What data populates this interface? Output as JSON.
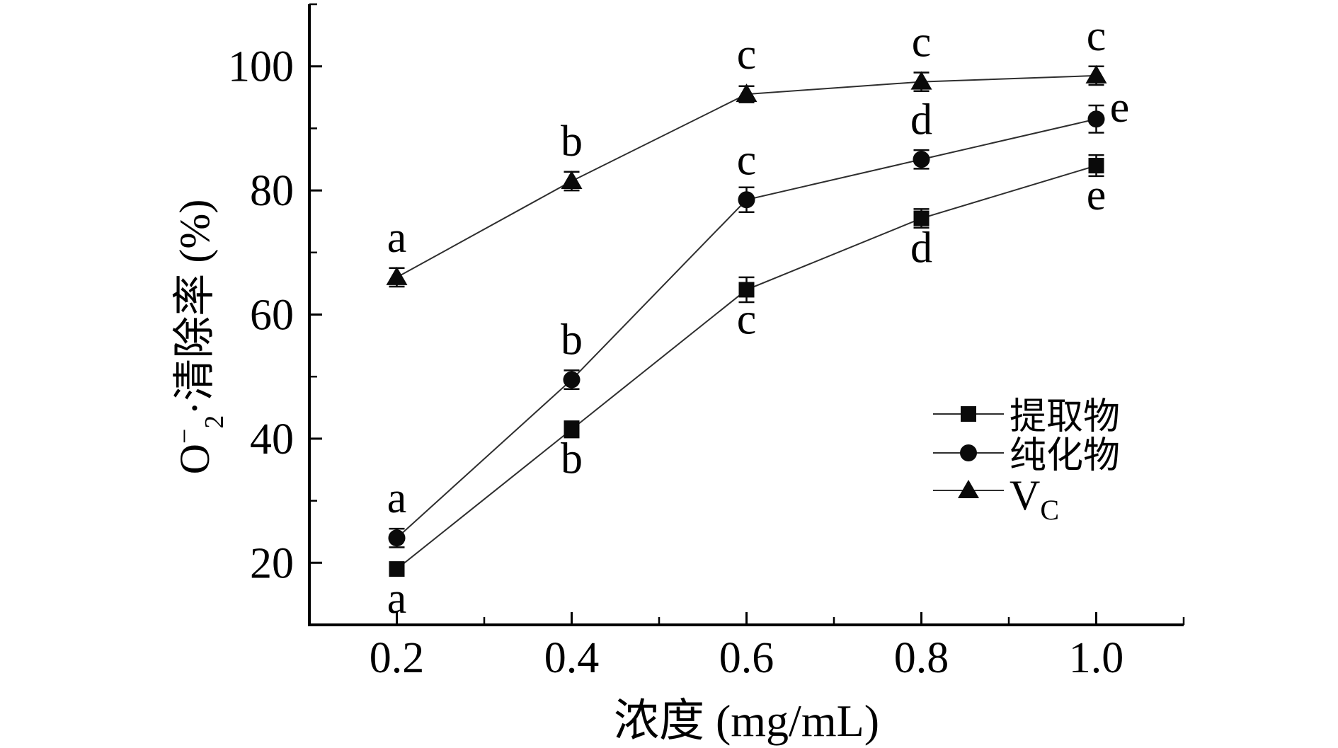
{
  "figure": {
    "background": "#ffffff",
    "axis_color": "#000000",
    "line_color": "#2e2e2e",
    "marker_color": "#0a0a0a",
    "text_color": "#000000"
  },
  "chart_data": {
    "type": "line",
    "title": "",
    "xlabel": "浓度 (mg/mL)",
    "ylabel": {
      "prefix": "O",
      "sup": "−",
      "sub": "2",
      "suffix": "·清除率 (%)"
    },
    "xlim": [
      0.1,
      1.1
    ],
    "ylim": [
      10,
      110
    ],
    "grid": false,
    "legend_position": "inside-right",
    "x": [
      0.2,
      0.4,
      0.6,
      0.8,
      1.0
    ],
    "x_tick_labels": [
      "0.2",
      "0.4",
      "0.6",
      "0.8",
      "1.0"
    ],
    "x_minor_ticks": [
      0.3,
      0.5,
      0.7,
      0.9,
      1.1
    ],
    "y_major_ticks": [
      20,
      40,
      60,
      80,
      100
    ],
    "y_tick_labels": [
      "20",
      "40",
      "60",
      "80",
      "100"
    ],
    "y_minor_ticks": [
      30,
      50,
      70,
      90,
      110
    ],
    "series": [
      {
        "name": "提取物",
        "marker": "square",
        "values": [
          19,
          41.5,
          64,
          75.5,
          84
        ],
        "errors": [
          0.9,
          1.3,
          2.0,
          1.5,
          1.7
        ],
        "sig_letters": [
          {
            "text": "a",
            "pos": "below"
          },
          {
            "text": "b",
            "pos": "below"
          },
          {
            "text": "c",
            "pos": "below"
          },
          {
            "text": "d",
            "pos": "below"
          },
          {
            "text": "e",
            "pos": "below"
          }
        ]
      },
      {
        "name": "纯化物",
        "marker": "circle",
        "values": [
          24,
          49.5,
          78.5,
          85,
          91.5
        ],
        "errors": [
          1.5,
          1.5,
          2.0,
          1.5,
          2.2
        ],
        "sig_letters": [
          {
            "text": "a",
            "pos": "above"
          },
          {
            "text": "b",
            "pos": "above"
          },
          {
            "text": "c",
            "pos": "above"
          },
          {
            "text": "d",
            "pos": "above"
          },
          {
            "text": "e",
            "pos": "right"
          }
        ]
      },
      {
        "name": "Vc",
        "label_main": "V",
        "label_sub": "C",
        "marker": "triangle",
        "values": [
          66,
          81.5,
          95.5,
          97.5,
          98.5
        ],
        "errors": [
          1.5,
          1.5,
          1.3,
          1.5,
          1.5
        ],
        "sig_letters": [
          {
            "text": "a",
            "pos": "above"
          },
          {
            "text": "b",
            "pos": "above"
          },
          {
            "text": "c",
            "pos": "above"
          },
          {
            "text": "c",
            "pos": "above"
          },
          {
            "text": "c",
            "pos": "above"
          }
        ]
      }
    ]
  }
}
